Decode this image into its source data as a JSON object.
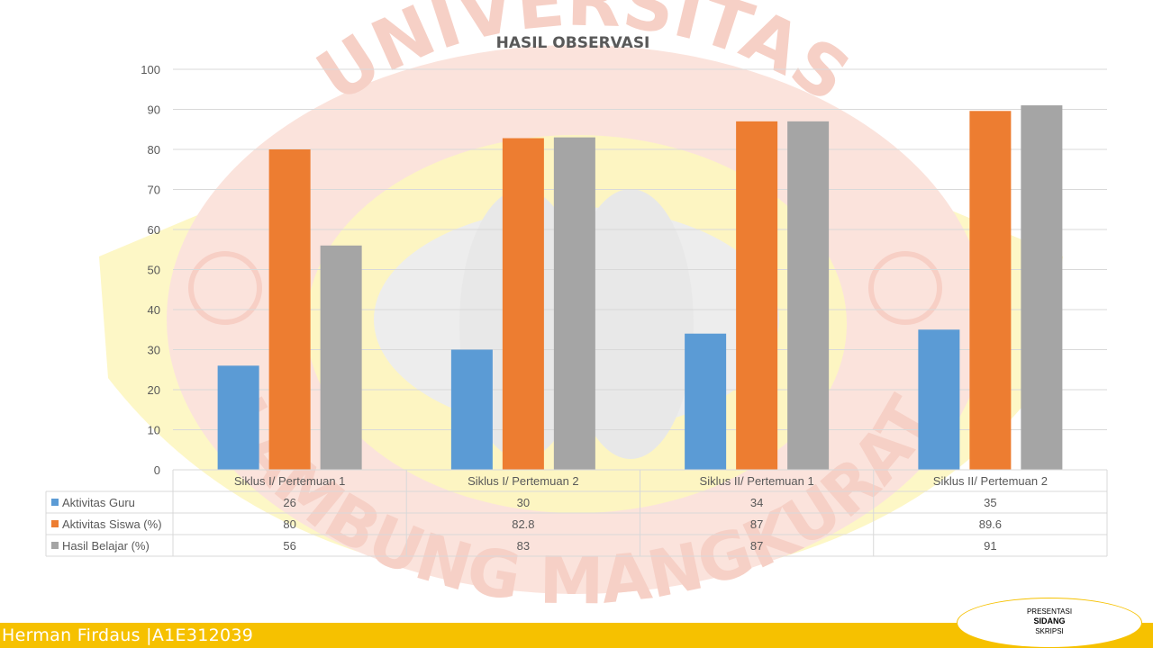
{
  "footer": {
    "author": "Herman Firdaus |A1E312039",
    "badge_line1": "PRESENTASI",
    "badge_line2": "SIDANG",
    "badge_line3": "SKRIPSI"
  },
  "watermark": {
    "top_text": "UNIVERSITAS",
    "bottom_text": "LAMBUNG MANGKURAT"
  },
  "chart_data": {
    "type": "bar",
    "title": "HASIL OBSERVASI",
    "xlabel": "",
    "ylabel": "",
    "ylim": [
      0,
      100
    ],
    "yticks": [
      0,
      10,
      20,
      30,
      40,
      50,
      60,
      70,
      80,
      90,
      100
    ],
    "grid": true,
    "legend": "data-table-below",
    "categories": [
      "Siklus I/ Pertemuan 1",
      "Siklus I/ Pertemuan 2",
      "Siklus II/ Pertemuan 1",
      "Siklus II/ Pertemuan 2"
    ],
    "series": [
      {
        "name": "Aktivitas Guru",
        "color": "#5b9bd5",
        "values": [
          26,
          30,
          34,
          35
        ],
        "labels": [
          "26",
          "30",
          "34",
          "35"
        ]
      },
      {
        "name": "Aktivitas Siswa (%)",
        "color": "#ed7d31",
        "values": [
          80,
          82.8,
          87,
          89.6
        ],
        "labels": [
          "80",
          "82.8",
          "87",
          "89.6"
        ]
      },
      {
        "name": "Hasil Belajar (%)",
        "color": "#a5a5a5",
        "values": [
          56,
          83,
          87,
          91
        ],
        "labels": [
          "56",
          "83",
          "87",
          "91"
        ]
      }
    ]
  }
}
